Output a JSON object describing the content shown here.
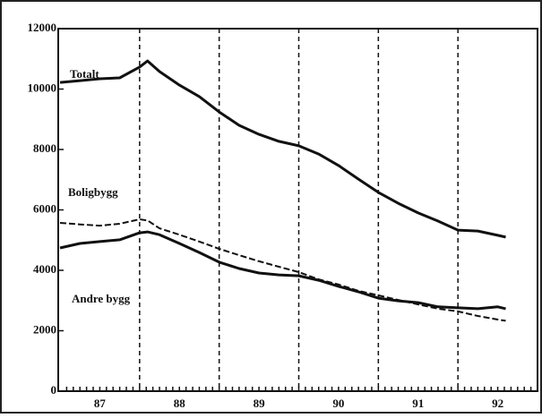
{
  "chart_data": {
    "type": "line",
    "x": [
      87.0,
      87.25,
      87.5,
      87.75,
      88.0,
      88.1,
      88.25,
      88.5,
      88.75,
      89.0,
      89.25,
      89.5,
      89.75,
      90.0,
      90.25,
      90.5,
      90.75,
      91.0,
      91.25,
      91.5,
      91.75,
      92.0,
      92.25,
      92.5,
      92.6
    ],
    "series": [
      {
        "name": "Totalt",
        "color": "#111111",
        "line_style": "solid",
        "values": [
          10220,
          10280,
          10340,
          10370,
          10730,
          10930,
          10580,
          10130,
          9750,
          9240,
          8800,
          8500,
          8270,
          8120,
          7850,
          7470,
          7020,
          6580,
          6220,
          5900,
          5630,
          5330,
          5300,
          5160,
          5100
        ]
      },
      {
        "name": "Boligbygg",
        "color": "#111111",
        "line_style": "dashed",
        "values": [
          5570,
          5520,
          5480,
          5540,
          5690,
          5650,
          5390,
          5180,
          4950,
          4710,
          4500,
          4300,
          4120,
          3940,
          3700,
          3530,
          3320,
          3170,
          3020,
          2870,
          2730,
          2640,
          2490,
          2370,
          2330
        ]
      },
      {
        "name": "Andre bygg",
        "color": "#111111",
        "line_style": "solid",
        "values": [
          4740,
          4890,
          4950,
          5010,
          5240,
          5270,
          5180,
          4890,
          4590,
          4270,
          4060,
          3910,
          3850,
          3820,
          3670,
          3470,
          3290,
          3080,
          2990,
          2930,
          2790,
          2760,
          2730,
          2790,
          2730
        ]
      }
    ],
    "xlim": [
      87,
      93
    ],
    "xticks": [
      {
        "value": 87.5,
        "label": "87"
      },
      {
        "value": 88.5,
        "label": "88"
      },
      {
        "value": 89.5,
        "label": "89"
      },
      {
        "value": 90.5,
        "label": "90"
      },
      {
        "value": 91.5,
        "label": "91"
      },
      {
        "value": 92.5,
        "label": "92"
      }
    ],
    "year_dividers": [
      88,
      89,
      90,
      91,
      92
    ],
    "ylim": [
      0,
      12000
    ],
    "yticks": [
      0,
      2000,
      4000,
      6000,
      8000,
      10000,
      12000
    ]
  }
}
